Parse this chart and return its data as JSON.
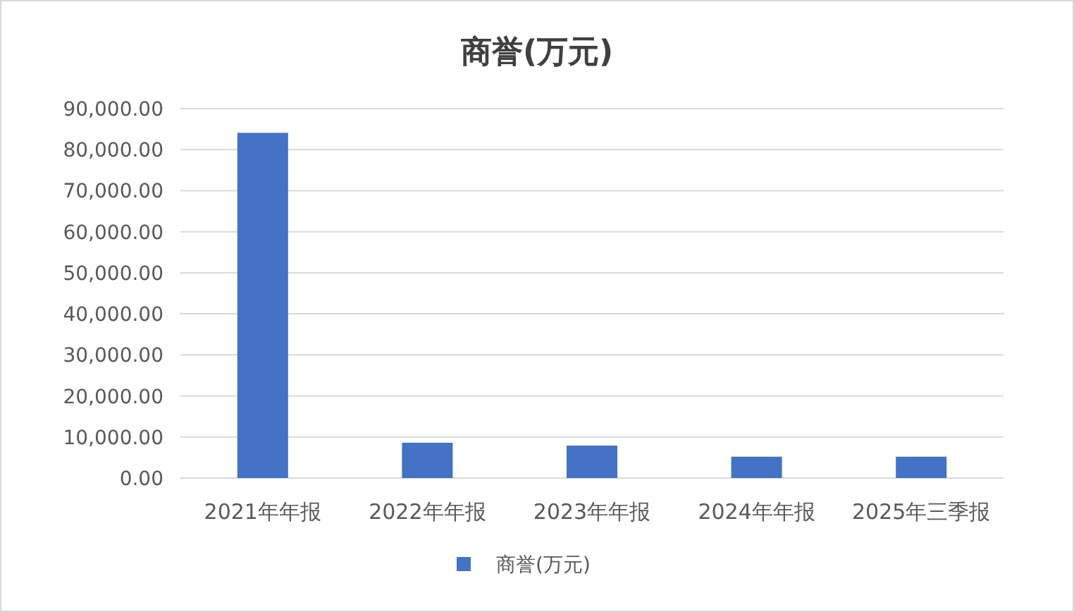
{
  "chart_data": {
    "type": "bar",
    "title": "商誉(万元)",
    "categories": [
      "2021年年报",
      "2022年年报",
      "2023年年报",
      "2024年年报",
      "2025年三季报"
    ],
    "series": [
      {
        "name": "商誉(万元)",
        "color": "#4472c4",
        "values": [
          84100,
          8600,
          7900,
          5200,
          5200
        ]
      }
    ],
    "ylim": [
      0,
      90000
    ],
    "yticks": [
      {
        "value": 0,
        "label": "0.00"
      },
      {
        "value": 10000,
        "label": "10,000.00"
      },
      {
        "value": 20000,
        "label": "20,000.00"
      },
      {
        "value": 30000,
        "label": "30,000.00"
      },
      {
        "value": 40000,
        "label": "40,000.00"
      },
      {
        "value": 50000,
        "label": "50,000.00"
      },
      {
        "value": 60000,
        "label": "60,000.00"
      },
      {
        "value": 70000,
        "label": "70,000.00"
      },
      {
        "value": 80000,
        "label": "80,000.00"
      },
      {
        "value": 90000,
        "label": "90,000.00"
      }
    ],
    "grid": "y",
    "legend": "bottom"
  }
}
